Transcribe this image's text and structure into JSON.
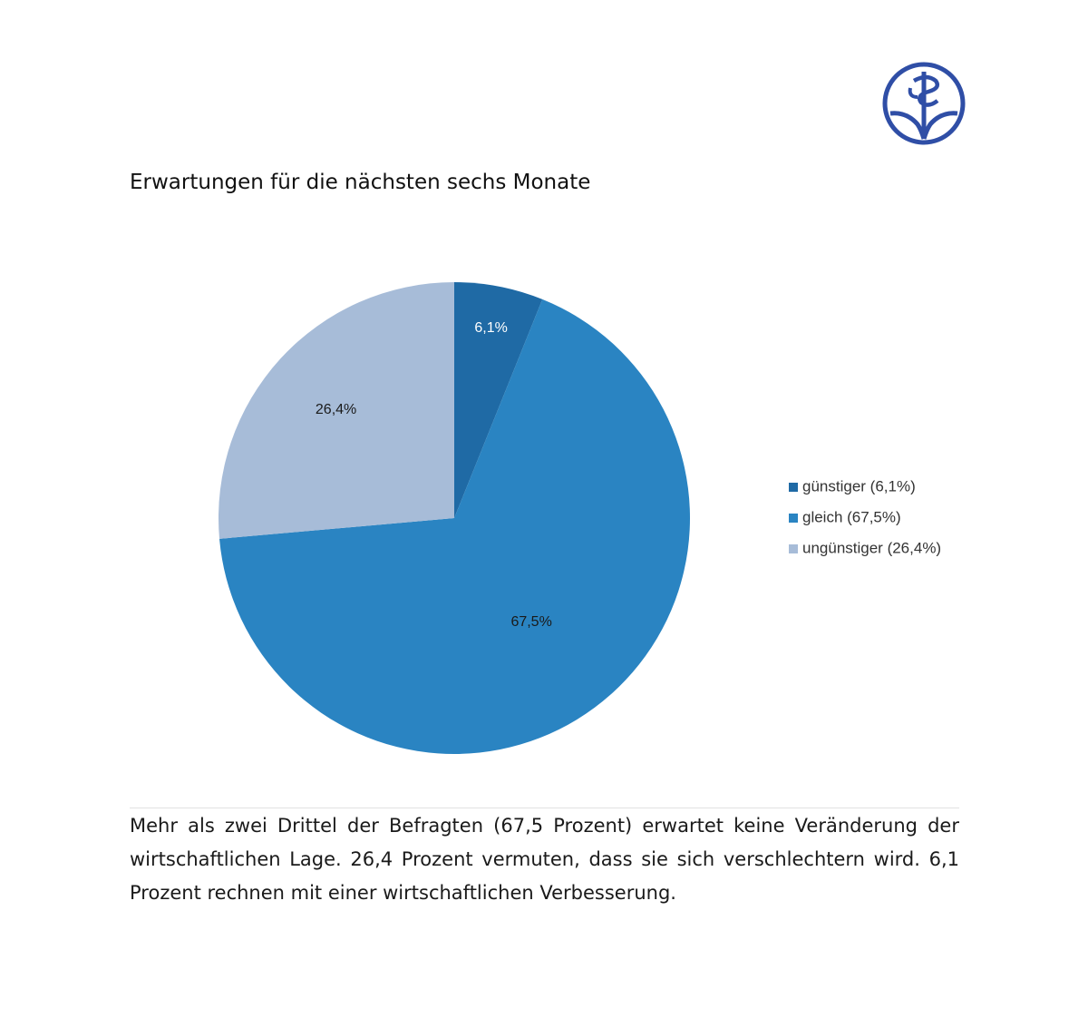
{
  "colors": {
    "guenstiger": "#1f6aa5",
    "gleich": "#2a84c2",
    "unguenstiger": "#a7bcd8",
    "logo": "#2f4ea6"
  },
  "logo_icon": "association-emblem-icon",
  "chart_data": {
    "type": "pie",
    "title": "Erwartungen für die nächsten sechs Monate",
    "legend_position": "right",
    "slices": [
      {
        "name": "günstiger (6,1%)",
        "value": 6.1,
        "label": "6,1%",
        "color": "#1f6aa5",
        "label_color": "#ffffff"
      },
      {
        "name": "gleich (67,5%)",
        "value": 67.5,
        "label": "67,5%",
        "color": "#2a84c2",
        "label_color": "#1a1a1a"
      },
      {
        "name": "ungünstiger (26,4%)",
        "value": 26.4,
        "label": "26,4%",
        "color": "#a7bcd8",
        "label_color": "#1a1a1a"
      }
    ]
  },
  "description": "Mehr als zwei Drittel der Befragten (67,5 Prozent) erwartet keine Veränderung der wirtschaftlichen Lage. 26,4 Prozent vermuten, dass sie sich verschlechtern wird. 6,1 Prozent rechnen mit einer wirtschaftlichen Verbesserung."
}
